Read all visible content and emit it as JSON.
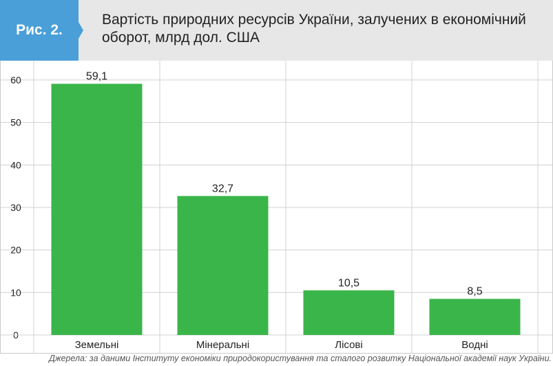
{
  "figure": {
    "label": "Рис. 2.",
    "title": "Вартість природних ресурсів України, залучених в економічний оборот, млрд дол. США"
  },
  "source": "Джерела: за даними Інституту економіки природокористування та сталого розвитку Національної академії наук України.",
  "colors": {
    "bar": "#3ab54a",
    "label_bg": "#4a9fd8",
    "header_bg": "#e7e7e7",
    "grid": "#d0d0d0"
  },
  "chart_data": {
    "type": "bar",
    "categories": [
      "Земельні",
      "Мінеральні",
      "Лісові",
      "Водні"
    ],
    "values": [
      59.1,
      32.7,
      10.5,
      8.5
    ],
    "value_labels": [
      "59,1",
      "32,7",
      "10,5",
      "8,5"
    ],
    "y_ticks": [
      0,
      10,
      20,
      30,
      40,
      50,
      60
    ],
    "ylim": [
      0,
      60
    ],
    "grid": true,
    "xlabel": "",
    "ylabel": ""
  }
}
